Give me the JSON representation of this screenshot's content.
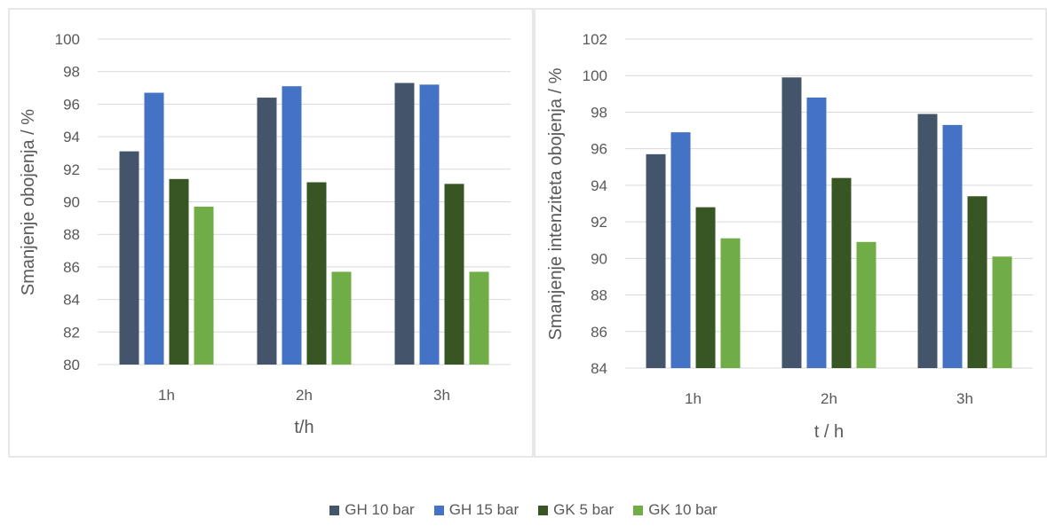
{
  "chart_data": [
    {
      "type": "bar",
      "categories": [
        "1h",
        "2h",
        "3h"
      ],
      "xlabel": "t/h",
      "ylabel": "Smanjenje obojenja / %",
      "ylim": [
        80,
        100
      ],
      "yticks": [
        "80",
        "82",
        "84",
        "86",
        "88",
        "90",
        "92",
        "94",
        "96",
        "98",
        "100"
      ],
      "grid": true,
      "series": [
        {
          "name": "GH 10 bar",
          "values": [
            93.1,
            96.4,
            97.3
          ]
        },
        {
          "name": "GH 15 bar",
          "values": [
            96.7,
            97.1,
            97.2
          ]
        },
        {
          "name": "GK 5 bar",
          "values": [
            91.4,
            91.2,
            91.1
          ]
        },
        {
          "name": "GK 10 bar",
          "values": [
            89.7,
            85.7,
            85.7
          ]
        }
      ]
    },
    {
      "type": "bar",
      "categories": [
        "1h",
        "2h",
        "3h"
      ],
      "xlabel": "t / h",
      "ylabel": "Smanjenje intenziteta obojenja / %",
      "ylim": [
        84,
        102
      ],
      "yticks": [
        "84",
        "86",
        "88",
        "90",
        "92",
        "94",
        "96",
        "98",
        "100",
        "102"
      ],
      "grid": true,
      "series": [
        {
          "name": "GH 10 bar",
          "values": [
            95.7,
            99.9,
            97.9
          ]
        },
        {
          "name": "GH 15 bar",
          "values": [
            96.9,
            98.8,
            97.3
          ]
        },
        {
          "name": "GK 5 bar",
          "values": [
            92.8,
            94.4,
            93.4
          ]
        },
        {
          "name": "GK 10 bar",
          "values": [
            91.1,
            90.9,
            90.1
          ]
        }
      ]
    }
  ],
  "legend": {
    "placement": "bottom",
    "items": [
      {
        "name": "GH 10 bar",
        "color": "#44546a"
      },
      {
        "name": "GH 15 bar",
        "color": "#4472c4"
      },
      {
        "name": "GK 5 bar",
        "color": "#375623"
      },
      {
        "name": "GK 10 bar",
        "color": "#70ad47"
      }
    ]
  },
  "colors": {
    "gridline": "#d9d9d9",
    "panel_border": "#d9d9d9",
    "text": "#595959"
  }
}
